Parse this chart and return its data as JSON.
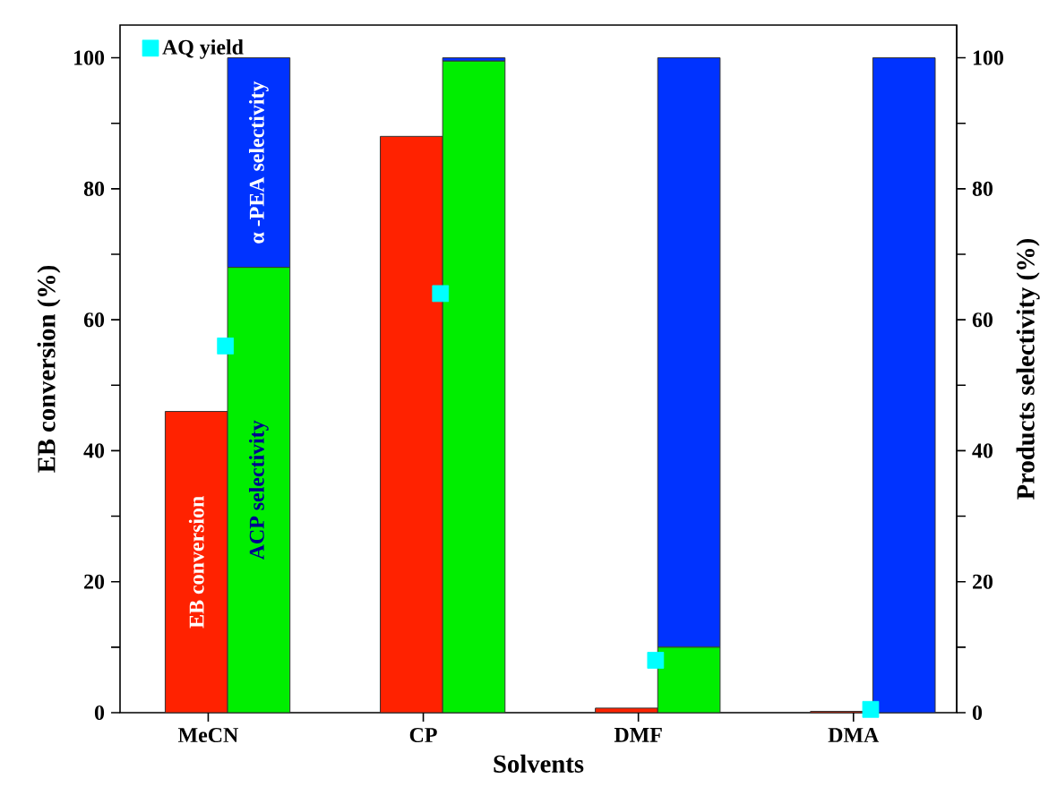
{
  "chart_data": {
    "type": "bar",
    "xlabel": "Solvents",
    "ylabel": "EB conversion (%)",
    "y2label": "Products selectivity (%)",
    "categories": [
      "MeCN",
      "CP",
      "DMF",
      "DMA"
    ],
    "series": [
      {
        "name": "EB conversion",
        "axis": "y",
        "color": "#ff2200",
        "values": [
          46,
          88,
          0.7,
          0.2
        ]
      },
      {
        "name": "ACP selectivity",
        "axis": "y2",
        "color": "#00ee00",
        "values": [
          68,
          99.5,
          10,
          0
        ]
      },
      {
        "name": "α -PEA selectivity",
        "axis": "y2",
        "color": "#0033ff",
        "values": [
          32,
          0.5,
          90,
          100
        ]
      },
      {
        "name": "AQ yield",
        "type": "scatter",
        "axis": "y",
        "color": "#00ffff",
        "marker": "square",
        "values": [
          56,
          64,
          8,
          0.5
        ]
      }
    ],
    "stacked": true,
    "ylim": [
      0,
      105
    ],
    "yticks": [
      0,
      {
        "value": 10,
        "label": null
      },
      20,
      {
        "value": 30,
        "label": null
      },
      40,
      {
        "value": 50,
        "label": null
      },
      60,
      {
        "value": 70,
        "label": null
      },
      80,
      {
        "value": 90,
        "label": null
      },
      100
    ],
    "y2lim": [
      0,
      105
    ],
    "y2ticks": [
      0,
      {
        "value": 10,
        "label": null
      },
      20,
      {
        "value": 30,
        "label": null
      },
      40,
      {
        "value": 50,
        "label": null
      },
      60,
      {
        "value": 70,
        "label": null
      },
      80,
      {
        "value": 90,
        "label": null
      },
      100
    ],
    "legend": "top left",
    "grid": false
  }
}
